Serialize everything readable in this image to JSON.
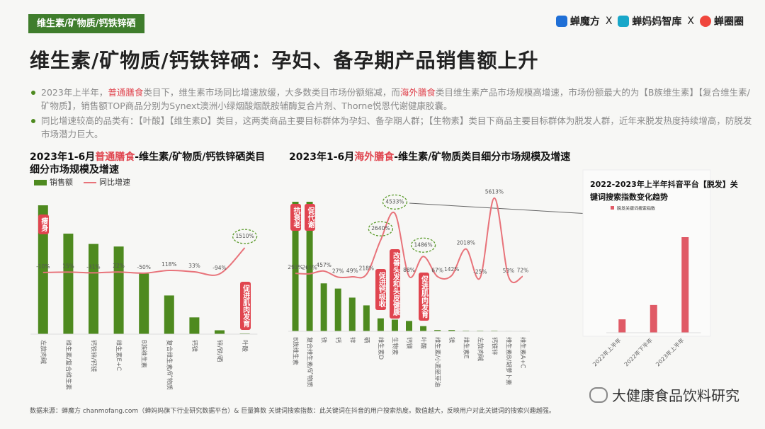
{
  "header": {
    "tag": "维生素/矿物质/钙铁锌硒",
    "logos": [
      "蝉魔方",
      "X",
      "蝉妈妈智库",
      "X",
      "蝉圈圈"
    ]
  },
  "title": "维生素/矿物质/钙铁锌硒：孕妇、备孕期产品销售额上升",
  "bullets": [
    [
      "2023年上半年，",
      {
        "text": "普通膳食",
        "color": "#e0454f"
      },
      "类目下，维生素市场同比增速放缓，大多数类目市场份额缩减，而",
      {
        "text": "海外膳食",
        "color": "#e0454f"
      },
      "类目维生素产品市场规模高增速，市场份额最大的为【B族维生素】【复合维生素/矿物质】，销售额TOP商品分别为Synext澳洲小绿烟酸烟酰胺辅酶复合片剂、Thorne悦恩代谢健康胶囊。"
    ],
    [
      "同比增速较高的品类有：【叶酸】【维生素D】类目，这两类商品主要目标群体为孕妇、备孕期人群；【生物素】类目下商品主要目标群体为脱发人群，近年来脱发热度持续增高，防脱发市场潜力巨大。"
    ]
  ],
  "chart_data": [
    {
      "type": "bar",
      "title": [
        "2023年1-6月",
        {
          "text": "普通膳食",
          "color": "#e0454f"
        },
        "-维生素/矿物质/钙铁锌硒类目细分市场规模及增速"
      ],
      "categories": [
        "左旋肉碱",
        "维生素/复合维生素",
        "钙铁锌/钙镁",
        "维生素E+C",
        "B族维生素",
        "复合维生素/矿物质",
        "钙镁",
        "锌/铁/硒",
        "叶酸"
      ],
      "ylim": [
        0,
        100
      ],
      "y2lim": [
        -100,
        1600
      ],
      "series": [
        {
          "name": "销售额",
          "color": "#4e8a1f",
          "values": [
            100,
            78,
            70,
            68,
            47,
            30,
            13,
            3,
            0.5
          ]
        },
        {
          "name": "同比增速",
          "color": "#e8737a",
          "axis": "y2",
          "values": [
            -10,
            15,
            -31,
            22,
            -50,
            118,
            33,
            -94,
            1510
          ],
          "value_labels": [
            "-10%",
            "15%",
            "-31%",
            "22%",
            "-50%",
            "118%",
            "33%",
            "-94%",
            "1510%"
          ]
        }
      ],
      "annotations": [
        {
          "text": "瘦身",
          "category": "左旋肉碱"
        },
        {
          "text": "促进肌肉发育",
          "category": "叶酸"
        }
      ]
    },
    {
      "type": "bar",
      "title": [
        "2023年1-6月",
        {
          "text": "海外膳食",
          "color": "#e0454f"
        },
        "-维生素/矿物质类目细分市场规模及增速"
      ],
      "categories": [
        "B族维生素",
        "复合维生素/矿物质",
        "铁",
        "钙",
        "锌",
        "硒",
        "维生素D",
        "生物素",
        "钙镁",
        "叶酸",
        "维生素/小麦胚芽油",
        "镁",
        "维生素E",
        "左旋肉碱",
        "钙镁锌",
        "维生素B/胡萝卜素",
        "维生素A+C"
      ],
      "ylim": [
        0,
        100
      ],
      "y2lim": [
        -100,
        6000
      ],
      "series": [
        {
          "name": "销售额",
          "color": "#4e8a1f",
          "values": [
            100,
            100,
            37,
            33,
            26,
            20,
            10,
            9,
            8,
            4,
            1,
            1,
            0.5,
            0.5,
            0.5,
            0.3,
            0.3
          ]
        },
        {
          "name": "同比增速",
          "color": "#e8737a",
          "axis": "y2",
          "values": [
            293,
            265,
            457,
            27,
            49,
            218,
            2640,
            4533,
            88,
            1486,
            67,
            142,
            2018,
            -25,
            5613,
            53,
            72
          ],
          "value_labels": [
            "293%",
            "265%",
            "457%",
            "27%",
            "49%",
            "218%",
            "2640%",
            "4533%",
            "88%",
            "1486%",
            "67%",
            "142%",
            "2018%",
            "-25%",
            "5613%",
            "53%",
            "72%"
          ]
        }
      ],
      "annotations": [
        {
          "text": "抗衰老",
          "category": "B族维生素"
        },
        {
          "text": "促代谢",
          "category": "复合维生素/矿物质"
        },
        {
          "text": "改善头发和头皮健康",
          "category": "生物素"
        },
        {
          "text": "促进钙吸收",
          "category": "维生素D"
        },
        {
          "text": "促进肌肉发育",
          "category": "叶酸"
        }
      ]
    },
    {
      "type": "bar",
      "title": [
        "2022-2023年上半年抖音平台【脱发】关键词搜索指数变化趋势"
      ],
      "categories": [
        "2022年上半年",
        "2022年下半年",
        "2023年上半年"
      ],
      "ylim": [
        0,
        100
      ],
      "series": [
        {
          "name": "脱发关键词搜索指数",
          "color": "#e05a66",
          "values": [
            14,
            29,
            100
          ]
        }
      ],
      "annotations": []
    }
  ],
  "footer": "数据来源：蝉魔方 chanmofang.com（蝉妈妈旗下行业研究数据平台）& 巨量算数 关键词搜索指数：此关键词在抖音的用户搜索热度。数值越大，反映用户对此关键词的搜索兴趣越强。",
  "watermark": "大健康食品饮料研究"
}
